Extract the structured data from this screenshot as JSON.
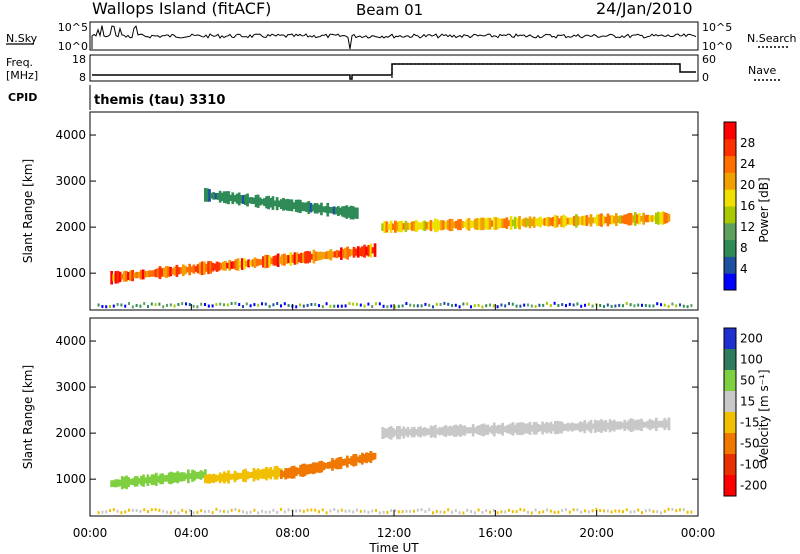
{
  "header": {
    "station": "Wallops Island (fitACF)",
    "beam": "Beam 01",
    "date": "24/Jan/2010"
  },
  "params": {
    "nsky_label": "N.Sky",
    "nsearch_label": "N.Search",
    "nsky_ticks": [
      "10^5",
      "10^0"
    ],
    "nsearch_ticks": [
      "10^5",
      "10^0"
    ],
    "freq_label_1": "Freq.",
    "freq_label_2": "[MHz]",
    "freq_ticks": [
      "18",
      "8"
    ],
    "nave_label": "Nave",
    "nave_ticks": [
      "60",
      "0"
    ],
    "cpid_label": "CPID",
    "cpid_text": "themis (tau) 3310"
  },
  "colors": {
    "power": [
      "#0000ff",
      "#1e50a0",
      "#2e8b57",
      "#5fa05f",
      "#a8c800",
      "#f0e000",
      "#f0a000",
      "#ff7000",
      "#ff3000",
      "#ff0000"
    ],
    "velocity": [
      "#1f2fd0",
      "#2e7b5f",
      "#7fd040",
      "#c8c8c8",
      "#f0c000",
      "#f07800",
      "#e83000",
      "#ff0000"
    ]
  },
  "chart_data": [
    {
      "type": "heatmap",
      "title": "Power",
      "ylabel": "Slant Range [km]",
      "xlabel": "Time UT",
      "x_ticks": [
        "00:00",
        "04:00",
        "08:00",
        "12:00",
        "16:00",
        "20:00",
        "00:00"
      ],
      "y_ticks": [
        1000,
        2000,
        3000,
        4000
      ],
      "colorbar": {
        "label": "Power [dB]",
        "ticks": [
          4,
          8,
          12,
          16,
          20,
          24,
          28
        ]
      },
      "ylim": [
        200,
        4500
      ],
      "xlim_hours": [
        0,
        24
      ],
      "bands": [
        {
          "start_hour": 0.8,
          "end_hour": 11.2,
          "start_range_km": 900,
          "end_range_km": 1500,
          "peak_db": 30
        },
        {
          "start_hour": 11.5,
          "end_hour": 22.8,
          "start_range_km": 2000,
          "end_range_km": 2200,
          "peak_db": 24
        },
        {
          "start_hour": 4.5,
          "end_hour": 10.5,
          "start_range_km": 2700,
          "end_range_km": 2300,
          "peak_db": 8
        }
      ]
    },
    {
      "type": "heatmap",
      "title": "Velocity",
      "ylabel": "Slant Range [km]",
      "xlabel": "Time UT",
      "x_ticks": [
        "00:00",
        "04:00",
        "08:00",
        "12:00",
        "16:00",
        "20:00",
        "00:00"
      ],
      "y_ticks": [
        1000,
        2000,
        3000,
        4000
      ],
      "colorbar": {
        "label": "Velocity [m s⁻¹]",
        "ticks": [
          200,
          100,
          50,
          15,
          -15,
          -50,
          -100,
          -200
        ]
      },
      "ylim": [
        200,
        4500
      ],
      "xlim_hours": [
        0,
        24
      ],
      "bands": [
        {
          "start_hour": 0.8,
          "end_hour": 4.5,
          "start_range_km": 900,
          "end_range_km": 1100,
          "velocity_ms": 40
        },
        {
          "start_hour": 4.5,
          "end_hour": 7.5,
          "start_range_km": 1000,
          "end_range_km": 1150,
          "velocity_ms": -20
        },
        {
          "start_hour": 7.5,
          "end_hour": 11.2,
          "start_range_km": 1100,
          "end_range_km": 1500,
          "velocity_ms": -60
        },
        {
          "start_hour": 11.5,
          "end_hour": 22.8,
          "start_range_km": 2000,
          "end_range_km": 2200,
          "velocity_ms": 0
        }
      ]
    }
  ]
}
